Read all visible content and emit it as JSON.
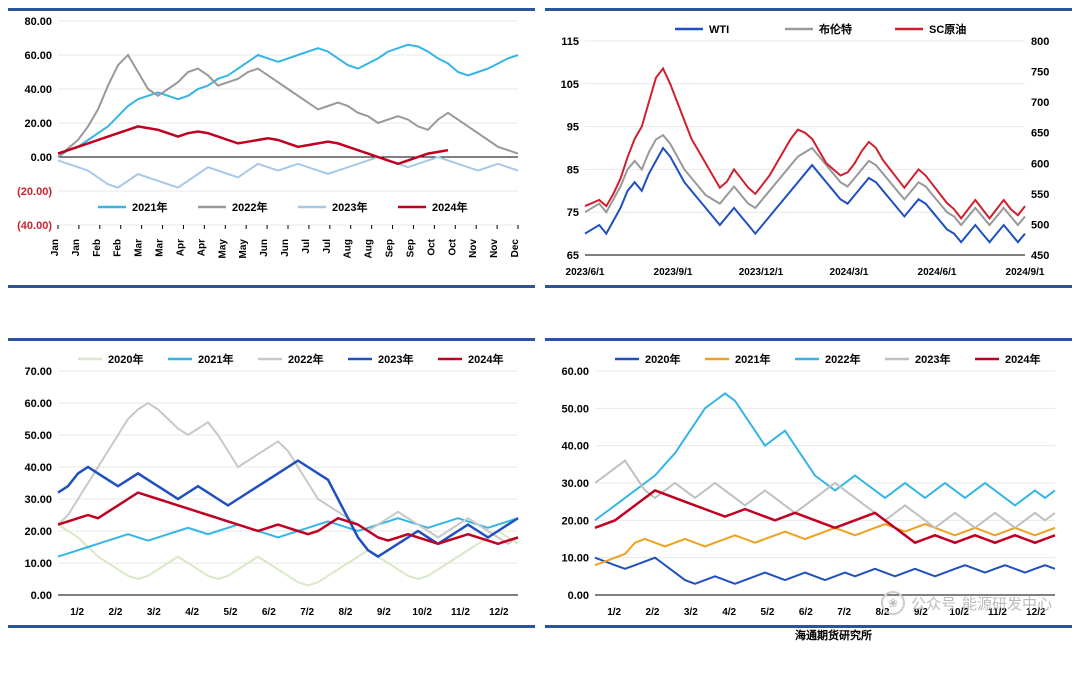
{
  "chart_tl": {
    "type": "line",
    "ylim": [
      -40,
      80
    ],
    "ytick_step": 20,
    "yticks": [
      {
        "v": 80,
        "label": "80.00",
        "neg": false
      },
      {
        "v": 60,
        "label": "60.00",
        "neg": false
      },
      {
        "v": 40,
        "label": "40.00",
        "neg": false
      },
      {
        "v": 20,
        "label": "20.00",
        "neg": false
      },
      {
        "v": 0,
        "label": "0.00",
        "neg": false
      },
      {
        "v": -20,
        "label": "(20.00)",
        "neg": true
      },
      {
        "v": -40,
        "label": "(40.00)",
        "neg": true
      }
    ],
    "x_labels": [
      "Jan",
      "Jan",
      "Feb",
      "Feb",
      "Mar",
      "Mar",
      "Apr",
      "Apr",
      "May",
      "May",
      "Jun",
      "Jun",
      "Jul",
      "Jul",
      "Aug",
      "Aug",
      "Sep",
      "Sep",
      "Oct",
      "Oct",
      "Nov",
      "Nov",
      "Dec"
    ],
    "legend": [
      {
        "name": "2021年",
        "color": "#35b5e5"
      },
      {
        "name": "2022年",
        "color": "#999999"
      },
      {
        "name": "2023年",
        "color": "#a8c8e8"
      },
      {
        "name": "2024年",
        "color": "#c00020"
      }
    ],
    "series": {
      "2021": {
        "color": "#35b5e5",
        "width": 2,
        "values": [
          0,
          4,
          6,
          10,
          14,
          18,
          24,
          30,
          34,
          36,
          38,
          36,
          34,
          36,
          40,
          42,
          46,
          48,
          52,
          56,
          60,
          58,
          56,
          58,
          60,
          62,
          64,
          62,
          58,
          54,
          52,
          55,
          58,
          62,
          64,
          66,
          65,
          62,
          58,
          55,
          50,
          48,
          50,
          52,
          55,
          58,
          60
        ]
      },
      "2022": {
        "color": "#999999",
        "width": 2,
        "values": [
          0,
          5,
          10,
          18,
          28,
          42,
          54,
          60,
          50,
          40,
          36,
          40,
          44,
          50,
          52,
          48,
          42,
          44,
          46,
          50,
          52,
          48,
          44,
          40,
          36,
          32,
          28,
          30,
          32,
          30,
          26,
          24,
          20,
          22,
          24,
          22,
          18,
          16,
          22,
          26,
          22,
          18,
          14,
          10,
          6,
          4,
          2
        ]
      },
      "2023": {
        "color": "#a8c8e8",
        "width": 2,
        "values": [
          -2,
          -4,
          -6,
          -8,
          -12,
          -16,
          -18,
          -14,
          -10,
          -12,
          -14,
          -16,
          -18,
          -14,
          -10,
          -6,
          -8,
          -10,
          -12,
          -8,
          -4,
          -6,
          -8,
          -6,
          -4,
          -6,
          -8,
          -10,
          -8,
          -6,
          -4,
          -2,
          0,
          -2,
          -4,
          -6,
          -4,
          -2,
          0,
          -2,
          -4,
          -6,
          -8,
          -6,
          -4,
          -6,
          -8
        ]
      },
      "2024": {
        "color": "#c00020",
        "width": 2.5,
        "values": [
          2,
          4,
          6,
          8,
          10,
          12,
          14,
          16,
          18,
          17,
          16,
          14,
          12,
          14,
          15,
          14,
          12,
          10,
          8,
          9,
          10,
          11,
          10,
          8,
          6,
          7,
          8,
          9,
          8,
          6,
          4,
          2,
          0,
          -2,
          -4,
          -2,
          0,
          2,
          3,
          4
        ]
      }
    },
    "background_color": "#ffffff",
    "grid_color": "#e8e8e8",
    "label_fontsize": 11
  },
  "chart_tr": {
    "type": "line-dual-axis",
    "y_left": {
      "lim": [
        65,
        115
      ],
      "ticks": [
        65,
        75,
        85,
        95,
        105,
        115
      ]
    },
    "y_right": {
      "lim": [
        450,
        800
      ],
      "ticks": [
        450,
        500,
        550,
        600,
        650,
        700,
        750,
        800
      ]
    },
    "x_labels": [
      "2023/6/1",
      "2023/9/1",
      "2023/12/1",
      "2024/3/1",
      "2024/6/1",
      "2024/9/1"
    ],
    "legend": [
      {
        "name": "WTI",
        "color": "#2050c0"
      },
      {
        "name": "布伦特",
        "color": "#999999"
      },
      {
        "name": "SC原油",
        "color": "#d02030"
      }
    ],
    "series": {
      "WTI": {
        "color": "#2050c0",
        "axis": "left",
        "width": 2,
        "values": [
          70,
          71,
          72,
          70,
          73,
          76,
          80,
          82,
          80,
          84,
          87,
          90,
          88,
          85,
          82,
          80,
          78,
          76,
          74,
          72,
          74,
          76,
          74,
          72,
          70,
          72,
          74,
          76,
          78,
          80,
          82,
          84,
          86,
          84,
          82,
          80,
          78,
          77,
          79,
          81,
          83,
          82,
          80,
          78,
          76,
          74,
          76,
          78,
          77,
          75,
          73,
          71,
          70,
          68,
          70,
          72,
          70,
          68,
          70,
          72,
          70,
          68,
          70
        ]
      },
      "Brent": {
        "color": "#999999",
        "axis": "left",
        "width": 2,
        "values": [
          75,
          76,
          77,
          75,
          78,
          81,
          85,
          87,
          85,
          89,
          92,
          93,
          91,
          88,
          85,
          83,
          81,
          79,
          78,
          77,
          79,
          81,
          79,
          77,
          76,
          78,
          80,
          82,
          84,
          86,
          88,
          89,
          90,
          88,
          86,
          84,
          82,
          81,
          83,
          85,
          87,
          86,
          84,
          82,
          80,
          78,
          80,
          82,
          81,
          79,
          77,
          75,
          74,
          72,
          74,
          76,
          74,
          72,
          74,
          76,
          74,
          72,
          74
        ]
      },
      "SC": {
        "color": "#d02030",
        "axis": "right",
        "width": 2,
        "values": [
          530,
          535,
          540,
          530,
          550,
          575,
          610,
          640,
          660,
          700,
          740,
          755,
          730,
          700,
          670,
          640,
          620,
          600,
          580,
          560,
          570,
          590,
          575,
          560,
          550,
          565,
          580,
          600,
          620,
          640,
          655,
          650,
          640,
          620,
          600,
          590,
          580,
          585,
          600,
          620,
          635,
          625,
          605,
          590,
          575,
          560,
          575,
          590,
          580,
          565,
          550,
          535,
          525,
          510,
          525,
          540,
          525,
          510,
          525,
          540,
          525,
          515,
          530
        ]
      }
    },
    "background_color": "#ffffff"
  },
  "chart_bl": {
    "type": "line",
    "ylim": [
      0,
      70
    ],
    "ytick_step": 10,
    "yticks": [
      0,
      10,
      20,
      30,
      40,
      50,
      60,
      70
    ],
    "x_labels": [
      "1/2",
      "2/2",
      "3/2",
      "4/2",
      "5/2",
      "6/2",
      "7/2",
      "8/2",
      "9/2",
      "10/2",
      "11/2",
      "12/2"
    ],
    "legend": [
      {
        "name": "2020年",
        "color": "#d8e8c8"
      },
      {
        "name": "2021年",
        "color": "#35b5e5"
      },
      {
        "name": "2022年",
        "color": "#c8c8c8"
      },
      {
        "name": "2023年",
        "color": "#2050c0"
      },
      {
        "name": "2024年",
        "color": "#c00020"
      }
    ],
    "series": {
      "2020": {
        "color": "#d8e8c8",
        "width": 2,
        "values": [
          22,
          20,
          18,
          15,
          12,
          10,
          8,
          6,
          5,
          6,
          8,
          10,
          12,
          10,
          8,
          6,
          5,
          6,
          8,
          10,
          12,
          10,
          8,
          6,
          4,
          3,
          4,
          6,
          8,
          10,
          12,
          14,
          12,
          10,
          8,
          6,
          5,
          6,
          8,
          10,
          12,
          14,
          16,
          18,
          20,
          18,
          16
        ]
      },
      "2021": {
        "color": "#35b5e5",
        "width": 2,
        "values": [
          12,
          13,
          14,
          15,
          16,
          17,
          18,
          19,
          18,
          17,
          18,
          19,
          20,
          21,
          20,
          19,
          20,
          21,
          22,
          21,
          20,
          19,
          18,
          19,
          20,
          21,
          22,
          23,
          22,
          21,
          20,
          21,
          22,
          23,
          24,
          23,
          22,
          21,
          22,
          23,
          24,
          23,
          22,
          21,
          22,
          23,
          24
        ]
      },
      "2022": {
        "color": "#c8c8c8",
        "width": 2,
        "values": [
          22,
          25,
          30,
          35,
          40,
          45,
          50,
          55,
          58,
          60,
          58,
          55,
          52,
          50,
          52,
          54,
          50,
          45,
          40,
          42,
          44,
          46,
          48,
          45,
          40,
          35,
          30,
          28,
          26,
          24,
          22,
          20,
          22,
          24,
          26,
          24,
          22,
          20,
          18,
          20,
          22,
          24,
          22,
          20,
          18,
          16,
          18
        ]
      },
      "2023": {
        "color": "#2050c0",
        "width": 2.5,
        "values": [
          32,
          34,
          38,
          40,
          38,
          36,
          34,
          36,
          38,
          36,
          34,
          32,
          30,
          32,
          34,
          32,
          30,
          28,
          30,
          32,
          34,
          36,
          38,
          40,
          42,
          40,
          38,
          36,
          30,
          24,
          18,
          14,
          12,
          14,
          16,
          18,
          20,
          18,
          16,
          18,
          20,
          22,
          20,
          18,
          20,
          22,
          24
        ]
      },
      "2024": {
        "color": "#c00020",
        "width": 2.5,
        "values": [
          22,
          23,
          24,
          25,
          24,
          26,
          28,
          30,
          32,
          31,
          30,
          29,
          28,
          27,
          26,
          25,
          24,
          23,
          22,
          21,
          20,
          21,
          22,
          21,
          20,
          19,
          20,
          22,
          24,
          23,
          22,
          20,
          18,
          17,
          18,
          19,
          18,
          17,
          16,
          17,
          18,
          19,
          18,
          17,
          16,
          17,
          18
        ]
      }
    },
    "background_color": "#ffffff"
  },
  "chart_br": {
    "type": "line",
    "ylim": [
      0,
      60
    ],
    "ytick_step": 10,
    "yticks": [
      0,
      10,
      20,
      30,
      40,
      50,
      60
    ],
    "x_labels": [
      "1/2",
      "2/2",
      "3/2",
      "4/2",
      "5/2",
      "6/2",
      "7/2",
      "8/2",
      "9/2",
      "10/2",
      "11/2",
      "12/2"
    ],
    "legend": [
      {
        "name": "2020年",
        "color": "#2050c0"
      },
      {
        "name": "2021年",
        "color": "#f0a020"
      },
      {
        "name": "2022年",
        "color": "#35b5e5"
      },
      {
        "name": "2023年",
        "color": "#c0c0c0"
      },
      {
        "name": "2024年",
        "color": "#c00020"
      }
    ],
    "series": {
      "2020": {
        "color": "#2050c0",
        "width": 2,
        "values": [
          10,
          9,
          8,
          7,
          8,
          9,
          10,
          8,
          6,
          4,
          3,
          4,
          5,
          4,
          3,
          4,
          5,
          6,
          5,
          4,
          5,
          6,
          5,
          4,
          5,
          6,
          5,
          6,
          7,
          6,
          5,
          6,
          7,
          6,
          5,
          6,
          7,
          8,
          7,
          6,
          7,
          8,
          7,
          6,
          7,
          8,
          7
        ]
      },
      "2021": {
        "color": "#f0a020",
        "width": 2,
        "values": [
          8,
          9,
          10,
          11,
          14,
          15,
          14,
          13,
          14,
          15,
          14,
          13,
          14,
          15,
          16,
          15,
          14,
          15,
          16,
          17,
          16,
          15,
          16,
          17,
          18,
          17,
          16,
          17,
          18,
          19,
          18,
          17,
          18,
          19,
          18,
          17,
          16,
          17,
          18,
          17,
          16,
          17,
          18,
          17,
          16,
          17,
          18
        ]
      },
      "2022": {
        "color": "#35b5e5",
        "width": 2,
        "values": [
          20,
          22,
          24,
          26,
          28,
          30,
          32,
          35,
          38,
          42,
          46,
          50,
          52,
          54,
          52,
          48,
          44,
          40,
          42,
          44,
          40,
          36,
          32,
          30,
          28,
          30,
          32,
          30,
          28,
          26,
          28,
          30,
          28,
          26,
          28,
          30,
          28,
          26,
          28,
          30,
          28,
          26,
          24,
          26,
          28,
          26,
          28
        ]
      },
      "2023": {
        "color": "#c0c0c0",
        "width": 2,
        "values": [
          30,
          32,
          34,
          36,
          32,
          28,
          26,
          28,
          30,
          28,
          26,
          28,
          30,
          28,
          26,
          24,
          26,
          28,
          26,
          24,
          22,
          24,
          26,
          28,
          30,
          28,
          26,
          24,
          22,
          20,
          22,
          24,
          22,
          20,
          18,
          20,
          22,
          20,
          18,
          20,
          22,
          20,
          18,
          20,
          22,
          20,
          22
        ]
      },
      "2024": {
        "color": "#c00020",
        "width": 2.5,
        "values": [
          18,
          19,
          20,
          22,
          24,
          26,
          28,
          27,
          26,
          25,
          24,
          23,
          22,
          21,
          22,
          23,
          22,
          21,
          20,
          21,
          22,
          21,
          20,
          19,
          18,
          19,
          20,
          21,
          22,
          20,
          18,
          16,
          14,
          15,
          16,
          15,
          14,
          15,
          16,
          15,
          14,
          15,
          16,
          15,
          14,
          15,
          16
        ]
      }
    },
    "background_color": "#ffffff"
  },
  "footer": "海通期货研究所",
  "watermark": {
    "label": "公众号",
    "sub": "能源研发中心"
  }
}
